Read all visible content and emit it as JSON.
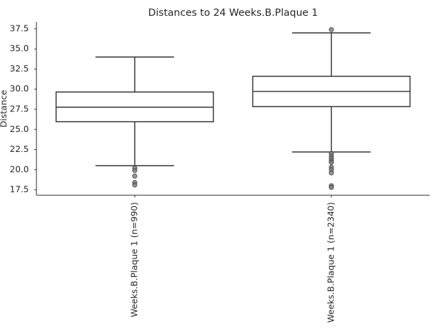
{
  "chart_data": {
    "type": "box",
    "title": "Distances to 24 Weeks.B.Plaque 1",
    "y_label": "Distance",
    "categories": [
      "Weeks.B.Plaque 1 (n=990)",
      "Weeks.B.Plaque 1 (n=2340)"
    ],
    "boxes": [
      {
        "min": 20.5,
        "q1": 25.96,
        "median": 27.76,
        "q3": 29.65,
        "max": 34.0,
        "outliers": [
          20.2,
          19.9,
          19.2,
          18.4,
          18.1
        ]
      },
      {
        "min": 22.2,
        "q1": 27.84,
        "median": 29.72,
        "q3": 31.6,
        "max": 37.0,
        "outliers": [
          37.4,
          22.0,
          21.7,
          21.4,
          21.1,
          20.9,
          20.3,
          20.0,
          19.6,
          18.0,
          17.8
        ]
      }
    ],
    "color": "#ffffff",
    "edge_color": "#3f3f3f",
    "outlier_color": "#7a7a7a",
    "ylim": [
      16.82,
      38.35
    ],
    "yticks": [
      17.5,
      {
        "value": 20,
        "label": "20.0"
      },
      22.5,
      {
        "value": 25,
        "label": "25.0"
      },
      27.5,
      {
        "value": 30,
        "label": "30.0"
      },
      32.5,
      {
        "value": 35,
        "label": "35.0"
      },
      37.5
    ],
    "grid": false
  }
}
